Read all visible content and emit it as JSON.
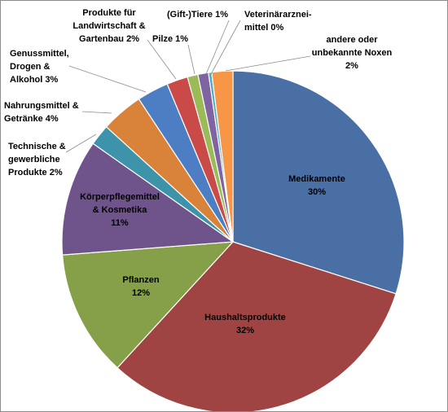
{
  "chart_data": {
    "type": "pie",
    "title": "",
    "start_angle_deg": 0,
    "direction": "clockwise",
    "slices": [
      {
        "lines": [
          "Medikamente",
          "30%"
        ],
        "value": 30,
        "color": "#4a6fa5"
      },
      {
        "lines": [
          "Haushaltsprodukte",
          "32%"
        ],
        "value": 32,
        "color": "#a04443"
      },
      {
        "lines": [
          "Pflanzen",
          "12%"
        ],
        "value": 12,
        "color": "#86a04a"
      },
      {
        "lines": [
          "Körperpflegemittel",
          "& Kosmetika",
          "11%"
        ],
        "value": 11,
        "color": "#6e548b"
      },
      {
        "lines": [
          "Technische &",
          "gewerbliche",
          "Produkte 2%"
        ],
        "value": 2,
        "color": "#3d93aa"
      },
      {
        "lines": [
          "Nahrungsmittel &",
          "Getränke 4%"
        ],
        "value": 4,
        "color": "#d8823a"
      },
      {
        "lines": [
          "Genussmittel,",
          "Drogen &",
          "Alkohol 3%"
        ],
        "value": 3,
        "color": "#4d7ec4"
      },
      {
        "lines": [
          "Produkte für",
          "Landwirtschaft &",
          "Gartenbau  2%"
        ],
        "value": 2,
        "color": "#c94a47"
      },
      {
        "lines": [
          "Pilze 1%"
        ],
        "value": 1,
        "color": "#9bbb59"
      },
      {
        "lines": [
          "(Gift-)Tiere 1%"
        ],
        "value": 1,
        "color": "#8064a2"
      },
      {
        "lines": [
          "Veterinärarznei-",
          "mittel 0%"
        ],
        "value": 0.3,
        "color": "#4bacc6"
      },
      {
        "lines": [
          "andere oder",
          "unbekannte Noxen",
          "2%"
        ],
        "value": 2,
        "color": "#f79646"
      }
    ]
  }
}
